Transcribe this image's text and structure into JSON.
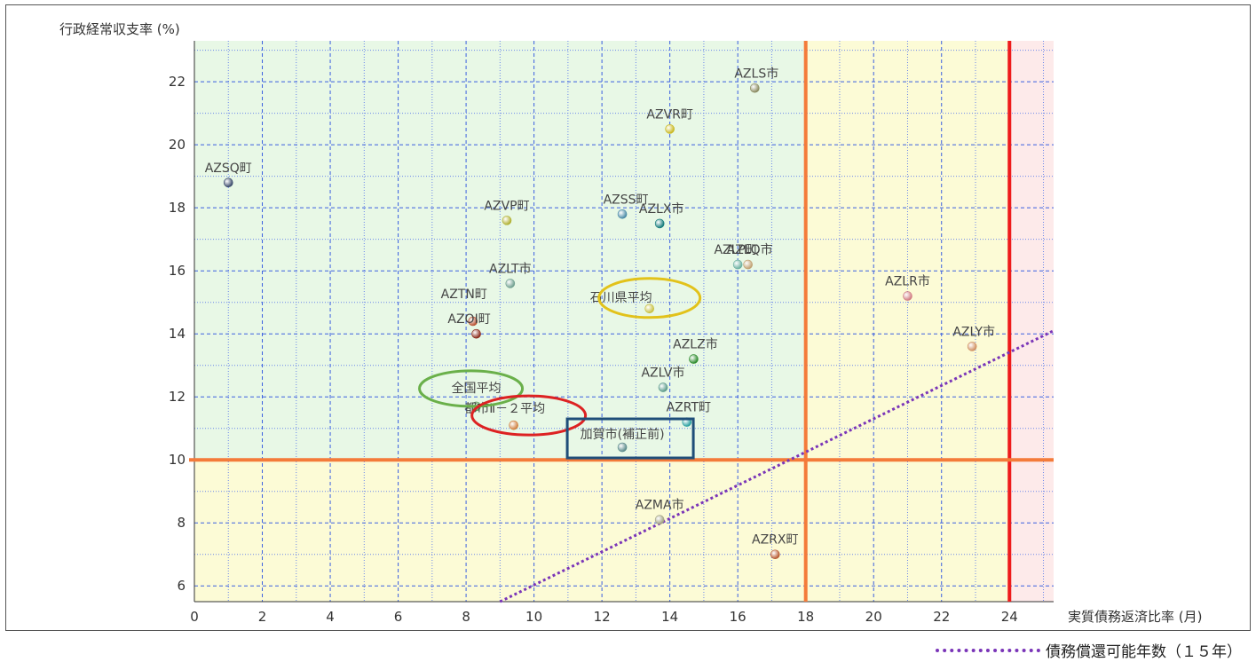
{
  "chart_data": {
    "type": "scatter",
    "title": "",
    "xlabel": "実質債務返済比率 (月)",
    "ylabel": "行政経常収支率 (%)",
    "xlim": [
      0,
      25.3
    ],
    "ylim": [
      5.5,
      23.3
    ],
    "x_ticks": [
      0,
      2,
      4,
      6,
      8,
      10,
      12,
      14,
      16,
      18,
      20,
      22,
      24
    ],
    "y_ticks": [
      6,
      8,
      10,
      12,
      14,
      16,
      18,
      20,
      22
    ],
    "grid": true,
    "zones": [
      {
        "name": "green",
        "color": "#e8f8e6",
        "x": [
          0,
          18
        ],
        "y": [
          10,
          23.3
        ]
      },
      {
        "name": "yellow-left-bottom",
        "color": "#fcfbd6",
        "x": [
          0,
          18
        ],
        "y": [
          5.5,
          10
        ]
      },
      {
        "name": "yellow-right",
        "color": "#fcfbd6",
        "x": [
          18,
          24
        ],
        "y": [
          5.5,
          23.3
        ]
      },
      {
        "name": "pink",
        "color": "#fdeaea",
        "x": [
          24,
          25.3
        ],
        "y": [
          5.5,
          23.3
        ]
      }
    ],
    "reference_lines": [
      {
        "axis": "x",
        "value": 18,
        "color": "#f47b3a"
      },
      {
        "axis": "x",
        "value": 24,
        "color": "#ee1b1b"
      },
      {
        "axis": "y",
        "value": 10,
        "color": "#f47b3a"
      }
    ],
    "diagonal_line": {
      "label": "債務償還可能年数（１５年）",
      "from": [
        9,
        5.5
      ],
      "to": [
        25.3,
        14.1
      ],
      "color": "#7a35b8"
    },
    "points": [
      {
        "label": "AZSQ町",
        "x": 1.0,
        "y": 18.8,
        "color": "#3a4a6b"
      },
      {
        "label": "AZLS市",
        "x": 16.5,
        "y": 21.8,
        "color": "#8a8a60"
      },
      {
        "label": "AZVR町",
        "x": 14.0,
        "y": 20.5,
        "color": "#c9b820"
      },
      {
        "label": "AZVP町",
        "x": 9.2,
        "y": 17.6,
        "color": "#b0b030"
      },
      {
        "label": "AZSS町",
        "x": 12.6,
        "y": 17.8,
        "color": "#4a8aa6"
      },
      {
        "label": "AZLX市",
        "x": 13.7,
        "y": 17.5,
        "color": "#137a7a"
      },
      {
        "label": "AZLP町",
        "x": 16.0,
        "y": 16.2,
        "color": "#6ab0a0"
      },
      {
        "label": "AZLQ市",
        "x": 16.3,
        "y": 16.2,
        "color": "#c0a070"
      },
      {
        "label": "AZLT市",
        "x": 9.3,
        "y": 15.6,
        "color": "#70a090"
      },
      {
        "label": "石川県平均",
        "x": 13.4,
        "y": 14.8,
        "color": "#c8c040"
      },
      {
        "label": "AZLR市",
        "x": 21.0,
        "y": 15.2,
        "color": "#d07a80"
      },
      {
        "label": "AZTN町",
        "x": 8.2,
        "y": 14.4,
        "color": "#b85030"
      },
      {
        "label": "AZOI町",
        "x": 8.3,
        "y": 14.0,
        "color": "#8a2a1a"
      },
      {
        "label": "AZLY市",
        "x": 22.9,
        "y": 13.6,
        "color": "#d09060"
      },
      {
        "label": "AZLZ市",
        "x": 14.7,
        "y": 13.2,
        "color": "#2a8a2a"
      },
      {
        "label": "AZLV市",
        "x": 13.8,
        "y": 12.3,
        "color": "#5a9a8a"
      },
      {
        "label": "全国平均",
        "x": 8.3,
        "y": 11.7,
        "color": "#5aa05a"
      },
      {
        "label": "都市Ⅱ－２平均",
        "x": 9.4,
        "y": 11.1,
        "color": "#d08040"
      },
      {
        "label": "AZRT町",
        "x": 14.5,
        "y": 11.2,
        "color": "#2aa0a0"
      },
      {
        "label": "加賀市(補正前)",
        "x": 12.6,
        "y": 10.4,
        "color": "#5a8a8a"
      },
      {
        "label": "AZMA市",
        "x": 13.7,
        "y": 8.1,
        "color": "#a0a080"
      },
      {
        "label": "AZRX町",
        "x": 17.1,
        "y": 7.0,
        "color": "#b85a30"
      }
    ],
    "highlights": [
      {
        "label": "全国平均",
        "shape": "ellipse",
        "color": "#6ab04a"
      },
      {
        "label": "都市Ⅱ－２平均",
        "shape": "ellipse",
        "color": "#dd2222"
      },
      {
        "label": "石川県平均",
        "shape": "ellipse",
        "color": "#e2c21a"
      },
      {
        "label": "加賀市(補正前)",
        "shape": "rectangle",
        "color": "#1f4e79"
      }
    ]
  }
}
